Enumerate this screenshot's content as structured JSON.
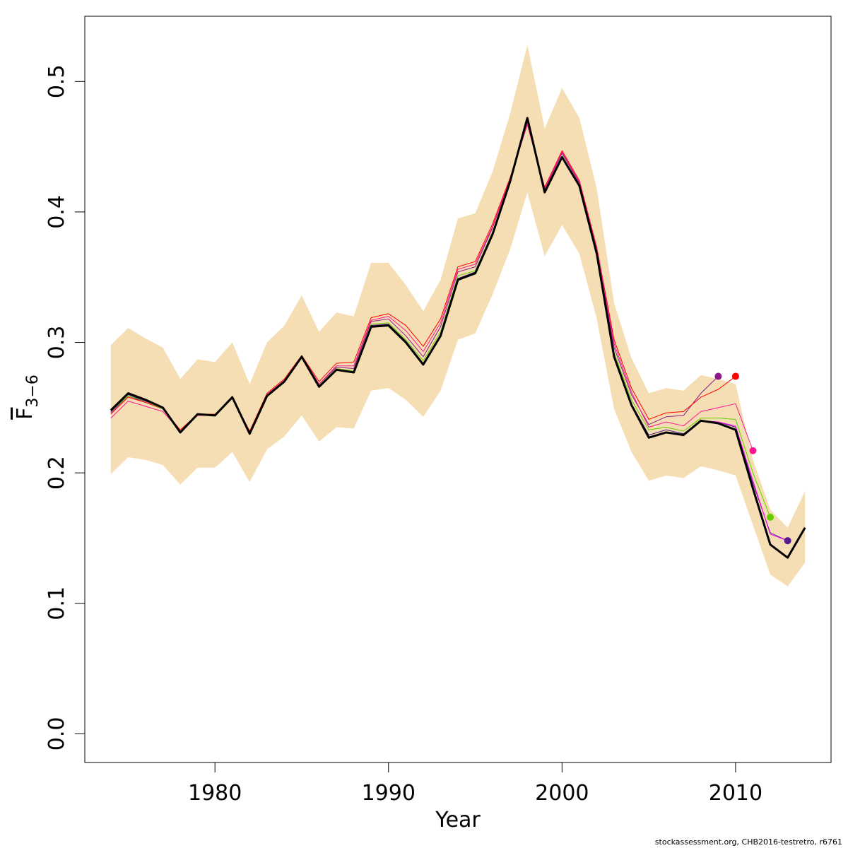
{
  "chart_data": {
    "type": "line",
    "xlabel": "Year",
    "ylabel_main": "F",
    "ylabel_sub": "3−6",
    "xlim": [
      1972.5,
      2015.5
    ],
    "ylim": [
      -0.022,
      0.55
    ],
    "x_ticks": [
      1980,
      1990,
      2000,
      2010
    ],
    "y_ticks": [
      0.0,
      0.1,
      0.2,
      0.3,
      0.4,
      0.5
    ],
    "x_tick_labels": [
      "1980",
      "1990",
      "2000",
      "2010"
    ],
    "y_tick_labels": [
      "0.0",
      "0.1",
      "0.2",
      "0.3",
      "0.4",
      "0.5"
    ],
    "band_color": "#F5DEB3",
    "confidence_band": {
      "x": [
        1974,
        1975,
        1976,
        1977,
        1978,
        1979,
        1980,
        1981,
        1982,
        1983,
        1984,
        1985,
        1986,
        1987,
        1988,
        1989,
        1990,
        1991,
        1992,
        1993,
        1994,
        1995,
        1996,
        1997,
        1998,
        1999,
        2000,
        2001,
        2002,
        2003,
        2004,
        2005,
        2006,
        2007,
        2008,
        2009,
        2010,
        2011,
        2012,
        2013,
        2014
      ],
      "upper": [
        0.298,
        0.311,
        0.303,
        0.296,
        0.272,
        0.287,
        0.285,
        0.3,
        0.268,
        0.3,
        0.313,
        0.336,
        0.308,
        0.323,
        0.32,
        0.361,
        0.361,
        0.344,
        0.324,
        0.348,
        0.395,
        0.399,
        0.431,
        0.475,
        0.528,
        0.464,
        0.495,
        0.472,
        0.418,
        0.33,
        0.288,
        0.261,
        0.265,
        0.263,
        0.275,
        0.272,
        0.268,
        0.21,
        0.172,
        0.158,
        0.186
      ],
      "lower": [
        0.199,
        0.212,
        0.21,
        0.206,
        0.191,
        0.204,
        0.204,
        0.216,
        0.193,
        0.218,
        0.228,
        0.244,
        0.224,
        0.235,
        0.234,
        0.263,
        0.265,
        0.256,
        0.243,
        0.263,
        0.302,
        0.307,
        0.337,
        0.371,
        0.415,
        0.366,
        0.39,
        0.368,
        0.318,
        0.249,
        0.216,
        0.194,
        0.198,
        0.196,
        0.205,
        0.202,
        0.198,
        0.16,
        0.122,
        0.113,
        0.131
      ]
    },
    "series": [
      {
        "color": "#000000",
        "width": 3,
        "x": [
          1974,
          1975,
          1976,
          1977,
          1978,
          1979,
          1980,
          1981,
          1982,
          1983,
          1984,
          1985,
          1986,
          1987,
          1988,
          1989,
          1990,
          1991,
          1992,
          1993,
          1994,
          1995,
          1996,
          1997,
          1998,
          1999,
          2000,
          2001,
          2002,
          2003,
          2004,
          2005,
          2006,
          2007,
          2008,
          2009,
          2010,
          2011,
          2012,
          2013,
          2014
        ],
        "y": [
          0.248,
          0.261,
          0.256,
          0.25,
          0.231,
          0.245,
          0.244,
          0.258,
          0.23,
          0.259,
          0.27,
          0.289,
          0.266,
          0.279,
          0.277,
          0.312,
          0.313,
          0.3,
          0.283,
          0.305,
          0.348,
          0.353,
          0.383,
          0.423,
          0.472,
          0.415,
          0.442,
          0.42,
          0.368,
          0.289,
          0.252,
          0.227,
          0.231,
          0.229,
          0.24,
          0.238,
          0.233,
          0.188,
          0.145,
          0.135,
          0.158
        ]
      },
      {
        "color": "#8B1A89",
        "width": 1,
        "endpoint": true,
        "x": [
          1974,
          1975,
          1976,
          1977,
          1978,
          1979,
          1980,
          1981,
          1982,
          1983,
          1984,
          1985,
          1986,
          1987,
          1988,
          1989,
          1990,
          1991,
          1992,
          1993,
          1994,
          1995,
          1996,
          1997,
          1998,
          1999,
          2000,
          2001,
          2002,
          2003,
          2004,
          2005,
          2006,
          2007,
          2008,
          2009
        ],
        "y": [
          0.246,
          0.259,
          0.254,
          0.249,
          0.232,
          0.245,
          0.244,
          0.258,
          0.231,
          0.26,
          0.271,
          0.29,
          0.268,
          0.281,
          0.28,
          0.316,
          0.318,
          0.305,
          0.289,
          0.312,
          0.354,
          0.358,
          0.388,
          0.425,
          0.469,
          0.417,
          0.445,
          0.422,
          0.371,
          0.296,
          0.26,
          0.237,
          0.243,
          0.244,
          0.261,
          0.274
        ]
      },
      {
        "color": "#FF0000",
        "width": 1,
        "endpoint": true,
        "x": [
          1974,
          1975,
          1976,
          1977,
          1978,
          1979,
          1980,
          1981,
          1982,
          1983,
          1984,
          1985,
          1986,
          1987,
          1988,
          1989,
          1990,
          1991,
          1992,
          1993,
          1994,
          1995,
          1996,
          1997,
          1998,
          1999,
          2000,
          2001,
          2002,
          2003,
          2004,
          2005,
          2006,
          2007,
          2008,
          2009,
          2010
        ],
        "y": [
          0.245,
          0.258,
          0.254,
          0.249,
          0.233,
          0.245,
          0.245,
          0.258,
          0.232,
          0.261,
          0.272,
          0.29,
          0.27,
          0.284,
          0.285,
          0.319,
          0.322,
          0.313,
          0.297,
          0.318,
          0.358,
          0.362,
          0.391,
          0.426,
          0.467,
          0.419,
          0.447,
          0.424,
          0.373,
          0.302,
          0.265,
          0.241,
          0.246,
          0.247,
          0.258,
          0.264,
          0.274
        ]
      },
      {
        "color": "#FF1493",
        "width": 1,
        "endpoint": true,
        "x": [
          1974,
          1975,
          1976,
          1977,
          1978,
          1979,
          1980,
          1981,
          1982,
          1983,
          1984,
          1985,
          1986,
          1987,
          1988,
          1989,
          1990,
          1991,
          1992,
          1993,
          1994,
          1995,
          1996,
          1997,
          1998,
          1999,
          2000,
          2001,
          2002,
          2003,
          2004,
          2005,
          2006,
          2007,
          2008,
          2009,
          2010,
          2011
        ],
        "y": [
          0.242,
          0.255,
          0.251,
          0.247,
          0.232,
          0.244,
          0.244,
          0.257,
          0.231,
          0.26,
          0.271,
          0.289,
          0.268,
          0.282,
          0.282,
          0.317,
          0.32,
          0.309,
          0.293,
          0.315,
          0.356,
          0.36,
          0.389,
          0.425,
          0.467,
          0.418,
          0.446,
          0.423,
          0.372,
          0.299,
          0.262,
          0.235,
          0.239,
          0.236,
          0.247,
          0.25,
          0.253,
          0.217
        ]
      },
      {
        "color": "#66CD00",
        "width": 1,
        "endpoint": true,
        "x": [
          1974,
          1975,
          1976,
          1977,
          1978,
          1979,
          1980,
          1981,
          1982,
          1983,
          1984,
          1985,
          1986,
          1987,
          1988,
          1989,
          1990,
          1991,
          1992,
          1993,
          1994,
          1995,
          1996,
          1997,
          1998,
          1999,
          2000,
          2001,
          2002,
          2003,
          2004,
          2005,
          2006,
          2007,
          2008,
          2009,
          2010,
          2011,
          2012
        ],
        "y": [
          0.247,
          0.259,
          0.255,
          0.249,
          0.232,
          0.245,
          0.244,
          0.258,
          0.231,
          0.259,
          0.27,
          0.289,
          0.267,
          0.28,
          0.278,
          0.314,
          0.315,
          0.302,
          0.286,
          0.308,
          0.351,
          0.355,
          0.385,
          0.424,
          0.47,
          0.416,
          0.443,
          0.421,
          0.369,
          0.292,
          0.256,
          0.233,
          0.235,
          0.232,
          0.242,
          0.242,
          0.241,
          0.2,
          0.166
        ]
      },
      {
        "color": "#551A8B",
        "width": 1,
        "endpoint": true,
        "x": [
          1974,
          1975,
          1976,
          1977,
          1978,
          1979,
          1980,
          1981,
          1982,
          1983,
          1984,
          1985,
          1986,
          1987,
          1988,
          1989,
          1990,
          1991,
          1992,
          1993,
          1994,
          1995,
          1996,
          1997,
          1998,
          1999,
          2000,
          2001,
          2002,
          2003,
          2004,
          2005,
          2006,
          2007,
          2008,
          2009,
          2010,
          2011,
          2012,
          2013
        ],
        "y": [
          0.247,
          0.26,
          0.255,
          0.25,
          0.231,
          0.245,
          0.244,
          0.258,
          0.23,
          0.259,
          0.27,
          0.289,
          0.266,
          0.279,
          0.277,
          0.313,
          0.314,
          0.301,
          0.284,
          0.306,
          0.349,
          0.354,
          0.384,
          0.423,
          0.471,
          0.415,
          0.442,
          0.42,
          0.368,
          0.29,
          0.253,
          0.229,
          0.233,
          0.23,
          0.24,
          0.239,
          0.235,
          0.192,
          0.154,
          0.148
        ]
      },
      {
        "color": "#FF00FF",
        "width": 1,
        "x": [
          2008,
          2009,
          2010,
          2011,
          2012,
          2013
        ],
        "y": [
          0.24,
          0.239,
          0.236,
          0.194,
          0.153,
          0.148
        ]
      }
    ]
  },
  "footer": "stockassessment.org, CHB2016-testretro, r6761"
}
